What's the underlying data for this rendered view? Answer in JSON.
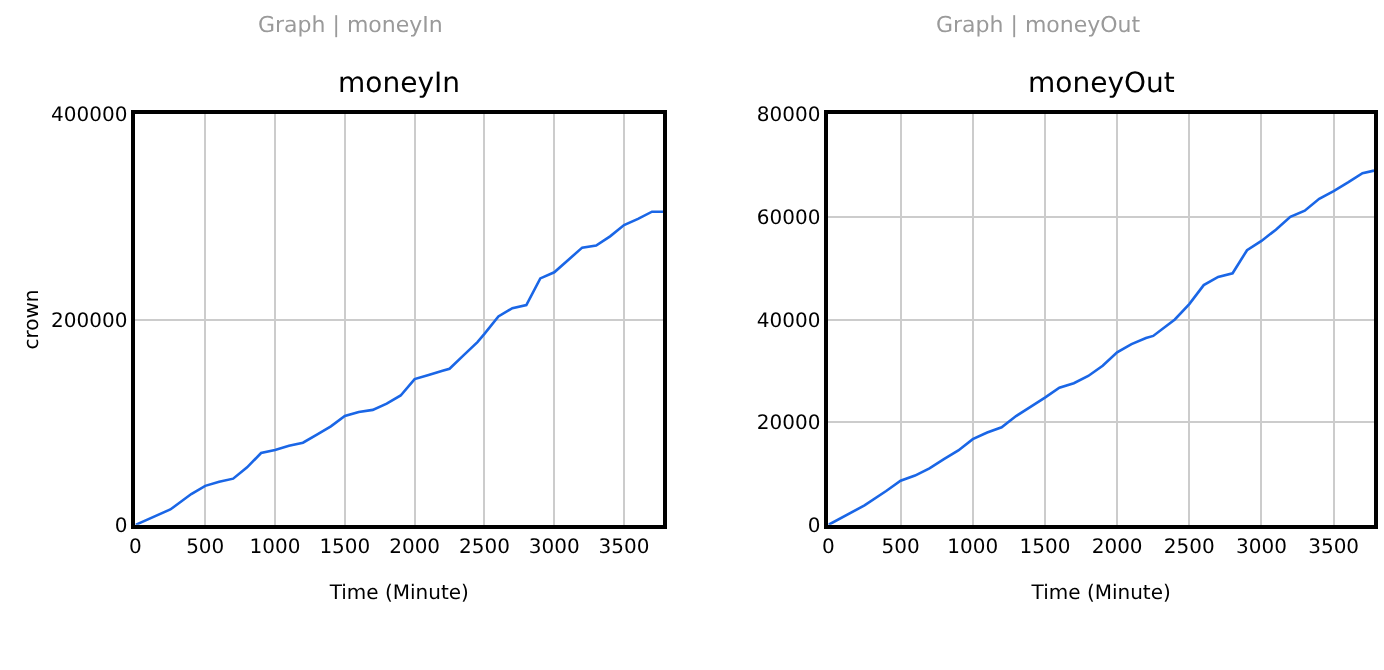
{
  "chart_data": [
    {
      "type": "line",
      "title": "moneyIn",
      "xlabel": "Time (Minute)",
      "ylabel": "crown",
      "annotations": [
        "Graph | moneyIn"
      ],
      "x": [
        0,
        250,
        400,
        500,
        600,
        700,
        800,
        900,
        1000,
        1100,
        1200,
        1300,
        1400,
        1500,
        1600,
        1700,
        1800,
        1900,
        2000,
        2100,
        2200,
        2250,
        2350,
        2450,
        2500,
        2600,
        2700,
        2800,
        2900,
        3000,
        3100,
        3200,
        3300,
        3400,
        3500,
        3600,
        3700,
        3780
      ],
      "series": [
        {
          "color": "#1a66e6",
          "values": [
            0,
            15000,
            30000,
            38000,
            42000,
            45000,
            56000,
            70000,
            73000,
            77000,
            80000,
            88000,
            96000,
            106000,
            110000,
            112000,
            118000,
            126000,
            142000,
            146000,
            150000,
            152000,
            165000,
            178000,
            186000,
            203000,
            211000,
            214000,
            240000,
            246000,
            258000,
            270000,
            272000,
            281000,
            292000,
            298000,
            305000,
            305000
          ]
        }
      ],
      "xlim": [
        0,
        3780
      ],
      "ylim": [
        0,
        400000
      ],
      "xticks": [
        0,
        500,
        1000,
        1500,
        2000,
        2500,
        3000,
        3500
      ],
      "yticks": [
        0,
        200000,
        400000
      ],
      "grid": true
    },
    {
      "type": "line",
      "title": "moneyOut",
      "xlabel": "Time (Minute)",
      "annotations": [
        "Graph | moneyOut"
      ],
      "x": [
        0,
        250,
        400,
        500,
        600,
        700,
        800,
        900,
        1000,
        1100,
        1200,
        1300,
        1400,
        1500,
        1600,
        1700,
        1800,
        1900,
        2000,
        2100,
        2200,
        2250,
        2400,
        2500,
        2600,
        2700,
        2800,
        2900,
        3000,
        3100,
        3200,
        3300,
        3400,
        3500,
        3600,
        3700,
        3780
      ],
      "series": [
        {
          "color": "#1a66e6",
          "values": [
            0,
            3800,
            6600,
            8600,
            9600,
            11000,
            12800,
            14500,
            16700,
            18000,
            19000,
            21200,
            23000,
            24800,
            26700,
            27600,
            29000,
            31000,
            33600,
            35200,
            36400,
            36800,
            40000,
            43000,
            46700,
            48300,
            49000,
            53500,
            55300,
            57500,
            60000,
            61200,
            63500,
            65000,
            66700,
            68500,
            69000
          ]
        }
      ],
      "xlim": [
        0,
        3780
      ],
      "ylim": [
        0,
        80000
      ],
      "xticks": [
        0,
        500,
        1000,
        1500,
        2000,
        2500,
        3000,
        3500
      ],
      "yticks": [
        0,
        20000,
        40000,
        60000,
        80000
      ],
      "grid": true
    }
  ]
}
